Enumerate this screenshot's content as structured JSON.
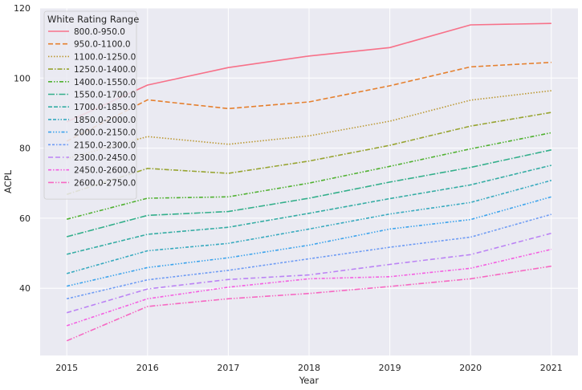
{
  "chart_data": {
    "type": "line",
    "xlabel": "Year",
    "ylabel": "ACPL",
    "x": [
      2015,
      2016,
      2017,
      2018,
      2019,
      2020,
      2021
    ],
    "xlim": [
      2014.67,
      2021.33
    ],
    "ylim": [
      20.8,
      120
    ],
    "yticks": [
      40,
      60,
      80,
      100,
      120
    ],
    "grid": true,
    "legend": {
      "title": "White Rating Range",
      "placement": "top-left"
    },
    "series": [
      {
        "name": "800.0-950.0",
        "color": "#f77189",
        "dash": "",
        "values": [
          87.5,
          98.0,
          103.0,
          106.3,
          108.7,
          115.2,
          115.6
        ]
      },
      {
        "name": "950.0-1100.0",
        "color": "#e5802f",
        "dash": "6,3",
        "values": [
          82.0,
          93.8,
          91.3,
          93.2,
          97.8,
          103.2,
          104.5
        ]
      },
      {
        "name": "1100.0-1250.0",
        "color": "#bb9832",
        "dash": "1.5,2",
        "values": [
          77.0,
          83.3,
          81.1,
          83.5,
          87.7,
          93.7,
          96.4
        ]
      },
      {
        "name": "1250.0-1400.0",
        "color": "#97a431",
        "dash": "6,2,1.5,2",
        "values": [
          66.8,
          74.2,
          72.8,
          76.3,
          80.8,
          86.3,
          90.2
        ]
      },
      {
        "name": "1400.0-1550.0",
        "color": "#50b131",
        "dash": "5,2,1.5,2,1.5,2",
        "values": [
          59.7,
          65.7,
          66.1,
          70.0,
          74.8,
          79.8,
          84.4
        ]
      },
      {
        "name": "1550.0-1700.0",
        "color": "#34af8b",
        "dash": "8,2,1.5,2",
        "values": [
          54.7,
          60.8,
          61.9,
          65.7,
          70.3,
          74.5,
          79.5
        ]
      },
      {
        "name": "1700.0-1850.0",
        "color": "#36ada4",
        "dash": "5,2,5,2,1.5,2",
        "values": [
          49.7,
          55.4,
          57.4,
          61.4,
          65.6,
          69.5,
          75.1
        ]
      },
      {
        "name": "1850.0-2000.0",
        "color": "#38aabf",
        "dash": "4,2,4,2,1.5,2,1.5,2",
        "values": [
          44.2,
          50.7,
          52.8,
          56.9,
          61.2,
          64.5,
          70.8
        ]
      },
      {
        "name": "2000.0-2150.0",
        "color": "#3ba3ec",
        "dash": "4,2,1.5,2,1.5,2,1.5,2",
        "values": [
          40.6,
          45.9,
          48.7,
          52.3,
          56.9,
          59.6,
          66.1
        ]
      },
      {
        "name": "2150.0-2300.0",
        "color": "#6e9bf4",
        "dash": "3,2,3,2,1.5,2",
        "values": [
          37.0,
          42.4,
          45.1,
          48.4,
          51.7,
          54.6,
          61.1
        ]
      },
      {
        "name": "2300.0-2450.0",
        "color": "#bb83f4",
        "dash": "6,3,6,3,1.5,3",
        "values": [
          33.0,
          39.8,
          42.5,
          43.8,
          46.8,
          49.6,
          55.7
        ]
      },
      {
        "name": "2450.0-2600.0",
        "color": "#f45fe1",
        "dash": "4,2,1.5,2,4,2,1.5,2,1.5,2",
        "values": [
          29.3,
          37.0,
          40.3,
          42.7,
          43.3,
          45.7,
          51.1
        ]
      },
      {
        "name": "2600.0-2750.0",
        "color": "#f668c2",
        "dash": "7,2,1.5,2,1.5,2",
        "values": [
          25.0,
          34.8,
          37.0,
          38.5,
          40.5,
          42.7,
          46.3
        ]
      }
    ]
  }
}
